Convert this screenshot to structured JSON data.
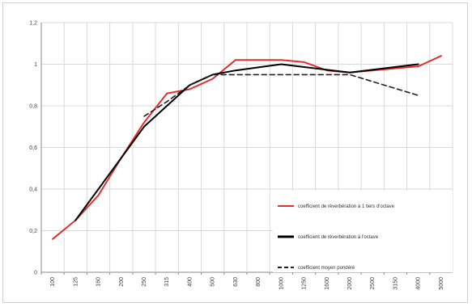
{
  "chart_data": {
    "type": "line",
    "title": "",
    "xlabel": "",
    "ylabel": "",
    "categories": [
      "100",
      "125",
      "160",
      "200",
      "250",
      "315",
      "400",
      "500",
      "630",
      "800",
      "1000",
      "1250",
      "1600",
      "2000",
      "2500",
      "3150",
      "4000",
      "5000"
    ],
    "y_ticks": [
      "0",
      "0,2",
      "0,4",
      "0,6",
      "0,8",
      "1",
      "1,2"
    ],
    "ylim": [
      0,
      1.2
    ],
    "grid": true,
    "legend_position": "right",
    "series": [
      {
        "name": "coefficient de réverbération à 1 tiers d'octave",
        "color": "#e03030",
        "style": "solid",
        "values": [
          0.16,
          0.25,
          0.37,
          0.55,
          0.72,
          0.86,
          0.88,
          0.93,
          1.02,
          1.02,
          1.02,
          1.01,
          0.97,
          0.96,
          null,
          null,
          0.99,
          1.04
        ]
      },
      {
        "name": "coefficient de réverbération à l'octave",
        "color": "#000000",
        "style": "solid",
        "values": [
          null,
          0.25,
          0.4,
          0.55,
          0.7,
          0.8,
          0.9,
          0.95,
          0.97,
          null,
          1.0,
          null,
          null,
          0.96,
          null,
          null,
          1.0,
          null
        ]
      },
      {
        "name": "coefficient moyen pondéré",
        "color": "#202020",
        "style": "dashed",
        "values": [
          null,
          null,
          null,
          null,
          0.75,
          0.82,
          0.9,
          0.95,
          0.95,
          0.95,
          0.95,
          0.95,
          0.95,
          0.95,
          null,
          null,
          0.85,
          null
        ]
      }
    ]
  }
}
